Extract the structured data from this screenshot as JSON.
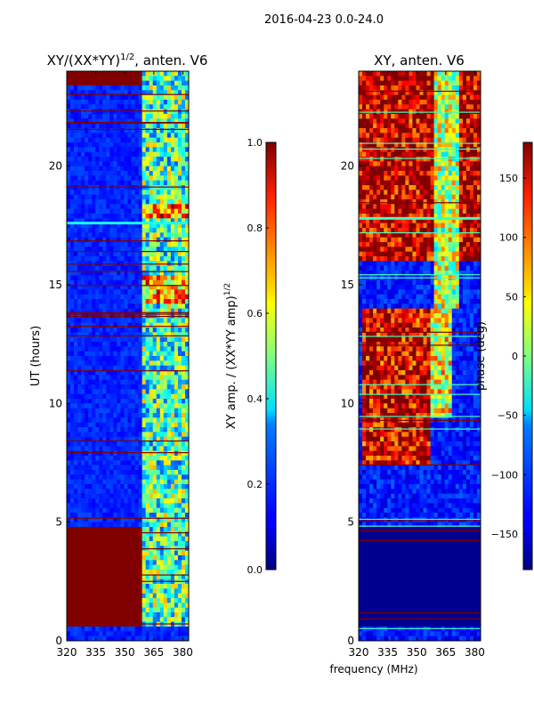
{
  "figure_title": "2016-04-23 0.0-24.0",
  "xlabel": "frequency (MHz)",
  "ylabel": "UT (hours)",
  "colors": {
    "hot": "#7f0000",
    "cold": "#00008f",
    "mid": "#7fff7f"
  },
  "chart_data": [
    {
      "type": "heatmap",
      "title_main": "XY/(XX*YY)",
      "title_sup": "1/2",
      "title_rest": ", anten. V6",
      "x_ticks": [
        320,
        335,
        350,
        365,
        380
      ],
      "xlim": [
        320,
        383
      ],
      "y_ticks": [
        0,
        5,
        10,
        15,
        20
      ],
      "ylim": [
        0,
        24
      ],
      "colorbar": {
        "label_main": "XY amp. / (XX*YY amp)",
        "label_sup": "1/2",
        "ticks": [
          "0.0",
          "0.2",
          "0.4",
          "0.6",
          "0.8",
          "1.0"
        ],
        "tick_values": [
          0.0,
          0.2,
          0.4,
          0.6,
          0.8,
          1.0
        ],
        "range": [
          0.0,
          1.0
        ],
        "colormap": "jet"
      },
      "value_range": [
        0,
        1
      ],
      "features": [
        {
          "kind": "band",
          "t0": 0.6,
          "t1": 4.8,
          "value": 1.0
        },
        {
          "kind": "band",
          "t0": 23.5,
          "t1": 24.0,
          "value": 1.0
        },
        {
          "kind": "region",
          "f0": 359,
          "f1": 383,
          "t0": 0.6,
          "t1": 24.0,
          "value": 0.45
        },
        {
          "kind": "region",
          "f0": 359,
          "f1": 383,
          "t0": 14.3,
          "t1": 15.3,
          "value": 0.7
        },
        {
          "kind": "region",
          "f0": 359,
          "f1": 383,
          "t0": 17.8,
          "t1": 18.3,
          "value": 0.75
        },
        {
          "kind": "hline",
          "t": 17.6,
          "value": 0.4
        }
      ]
    },
    {
      "type": "heatmap",
      "title_main": "XY, anten. V6",
      "x_ticks": [
        320,
        335,
        350,
        365,
        380
      ],
      "xlim": [
        320,
        383
      ],
      "y_ticks": [
        0,
        5,
        10,
        15,
        20
      ],
      "ylim": [
        0,
        24
      ],
      "colorbar": {
        "label_main": "phase (deg)",
        "ticks": [
          "150",
          "100",
          "50",
          "0",
          "−50",
          "−100",
          "−150"
        ],
        "tick_values": [
          150,
          100,
          50,
          0,
          -50,
          -100,
          -150
        ],
        "range": [
          -180,
          180
        ],
        "colormap": "jet"
      },
      "value_range": [
        -180,
        180
      ],
      "features": [
        {
          "kind": "band",
          "t0": 0.6,
          "t1": 4.8,
          "value": -175
        },
        {
          "kind": "region",
          "f0": 322,
          "f1": 357,
          "t0": 7.5,
          "t1": 14.0,
          "value": 150
        },
        {
          "kind": "region",
          "f0": 357,
          "f1": 368,
          "t0": 9.5,
          "t1": 14.0,
          "value": 40
        },
        {
          "kind": "region",
          "f0": 320,
          "f1": 383,
          "t0": 16.0,
          "t1": 24.0,
          "value": 160
        },
        {
          "kind": "region",
          "f0": 359,
          "f1": 372,
          "t0": 14.0,
          "t1": 24.0,
          "value": 20
        },
        {
          "kind": "hline",
          "t": 17.8,
          "value": -20
        }
      ]
    }
  ]
}
